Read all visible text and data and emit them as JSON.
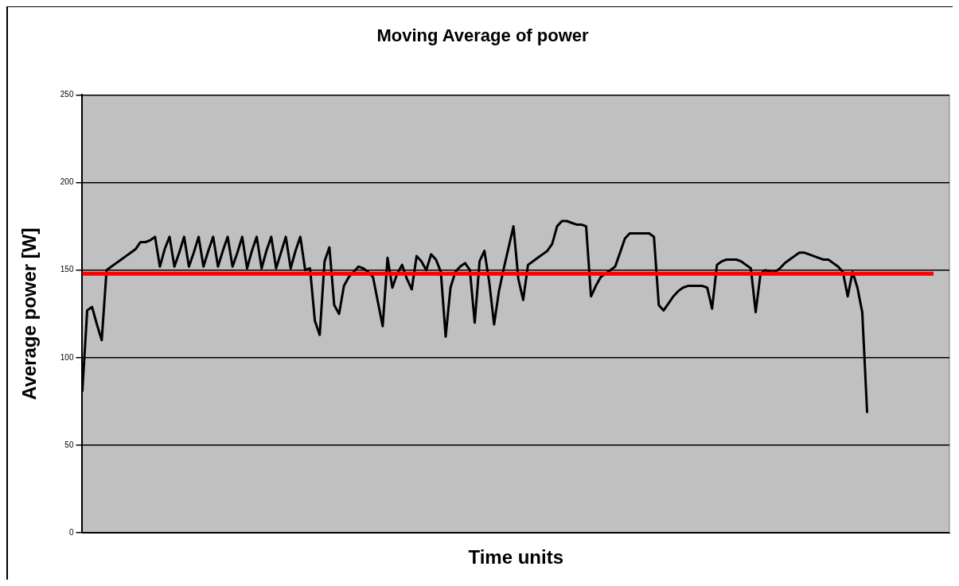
{
  "chart_data": {
    "type": "line",
    "title": "Moving Average of power",
    "xlabel": "Time units",
    "ylabel": "Average power [W]",
    "categories": [
      null,
      null,
      null,
      null,
      null,
      null,
      null,
      null,
      null,
      null,
      null,
      null,
      null,
      null,
      null,
      null,
      null,
      null,
      null,
      null,
      null,
      null,
      null,
      null,
      null,
      null,
      null,
      null,
      null,
      null,
      null,
      null,
      null,
      null,
      null,
      null,
      null,
      null,
      null,
      null,
      null,
      null,
      null,
      null,
      null,
      null,
      null,
      null,
      null,
      null,
      null,
      null,
      null,
      null,
      null,
      null,
      null,
      null,
      null,
      null,
      null,
      null,
      null,
      null,
      null,
      null,
      null,
      null,
      null,
      null,
      null,
      null,
      null,
      null,
      null,
      null,
      null,
      null,
      null,
      null,
      null,
      null,
      null,
      null,
      null,
      null,
      null,
      null,
      null,
      null,
      null,
      null,
      null,
      null,
      null,
      null,
      null,
      null,
      null,
      null,
      null,
      null,
      null,
      null,
      null,
      null,
      null,
      null,
      null,
      null,
      null,
      null,
      null,
      null,
      null,
      null,
      null,
      null,
      null,
      null,
      null,
      null,
      null,
      null,
      null,
      null,
      null,
      null,
      null,
      null,
      null,
      null,
      null,
      null,
      null,
      null,
      null,
      null,
      null,
      null,
      null,
      null,
      null,
      null,
      null,
      null,
      null,
      null,
      null,
      null,
      null,
      null,
      null,
      null,
      null,
      null,
      null,
      null,
      null,
      null,
      null,
      null,
      null,
      null,
      null,
      null,
      null,
      null,
      null,
      null,
      null,
      null,
      null,
      null,
      null,
      null,
      null,
      null,
      null,
      null
    ],
    "series": [
      {
        "color": "#000000",
        "values": [
          81,
          127,
          129,
          119,
          110,
          150,
          152,
          154,
          156,
          158,
          160,
          162,
          166,
          166,
          167,
          169,
          152,
          162,
          169,
          152,
          160,
          169,
          152,
          160,
          169,
          152,
          161,
          169,
          152,
          161,
          169,
          152,
          160,
          169,
          151,
          161,
          169,
          151,
          161,
          169,
          151,
          160,
          169,
          151,
          161,
          169,
          150,
          151,
          121,
          113,
          155,
          163,
          130,
          125,
          141,
          146,
          149,
          152,
          151,
          149,
          146,
          132,
          118,
          157,
          140,
          148,
          153,
          145,
          139,
          158,
          155,
          150,
          159,
          156,
          149,
          112,
          140,
          149,
          152,
          154,
          150,
          120,
          155,
          161,
          143,
          119,
          138,
          151,
          163,
          175,
          145,
          133,
          153,
          155,
          157,
          159,
          161,
          165,
          175,
          178,
          178,
          177,
          176,
          176,
          175,
          135,
          141,
          146,
          148,
          150,
          152,
          160,
          168,
          171,
          171,
          171,
          171,
          171,
          169,
          130,
          127,
          131,
          135,
          138,
          140,
          141,
          141,
          141,
          141,
          140,
          128,
          153,
          155,
          156,
          156,
          156,
          155,
          153,
          151,
          126,
          148,
          150,
          149,
          149,
          151,
          154,
          156,
          158,
          160,
          160,
          159,
          158,
          157,
          156,
          156,
          154,
          152,
          149,
          135,
          149,
          140,
          126,
          69,
          null,
          null,
          null,
          null,
          null,
          null,
          null,
          null,
          null,
          null,
          null,
          null,
          null,
          null,
          null,
          null,
          null
        ]
      }
    ],
    "ylim": [
      0,
      250
    ],
    "yticks": [
      0,
      50,
      100,
      150,
      200,
      250
    ],
    "grid": "y",
    "legend": false,
    "marker": "none",
    "line_style": "solid",
    "ref_lines": [
      {
        "axis": "y",
        "value": 148,
        "color": "#ff0000"
      }
    ]
  }
}
